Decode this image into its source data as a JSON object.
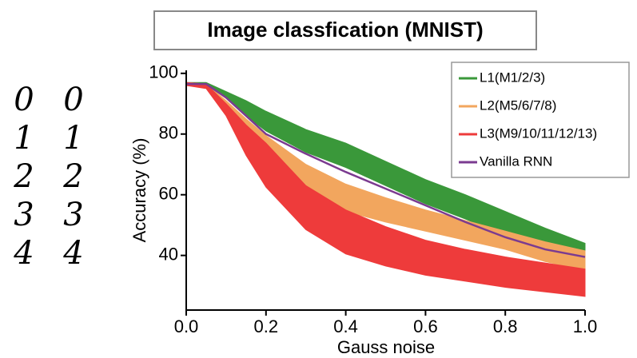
{
  "sample_digits": [
    [
      "0",
      "0"
    ],
    [
      "1",
      "1"
    ],
    [
      "2",
      "2"
    ],
    [
      "3",
      "3"
    ],
    [
      "4",
      "4"
    ]
  ],
  "chart_data": {
    "type": "line",
    "title": "Image classfication (MNIST)",
    "x_label": "Gauss noise",
    "y_label": "Accuracy (%)",
    "x": [
      0,
      0.05,
      0.1,
      0.15,
      0.2,
      0.3,
      0.4,
      0.5,
      0.6,
      0.7,
      0.8,
      0.9,
      1.0
    ],
    "series": [
      {
        "name": "L1(M1/2/3)",
        "color": "#3a983a",
        "upper": [
          97,
          97,
          94,
          91,
          87.5,
          81.5,
          77,
          71,
          65,
          60,
          54.5,
          49,
          44
        ],
        "lower": [
          96,
          96,
          92,
          86,
          81,
          74,
          69,
          63,
          57,
          52,
          46.5,
          42,
          38
        ]
      },
      {
        "name": "L2(M5/6/7/8)",
        "color": "#f2a65e",
        "upper": [
          97,
          96.5,
          91,
          85,
          79.5,
          70,
          63.5,
          59,
          55,
          51.5,
          48,
          44.5,
          41.5
        ],
        "lower": [
          96,
          95.5,
          89,
          81,
          74,
          62,
          54.5,
          51,
          48,
          45,
          42,
          38,
          35
        ]
      },
      {
        "name": "L3(M9/10/11/12/13)",
        "color": "#ee3b3b",
        "upper": [
          97,
          96.5,
          90,
          83,
          77,
          63,
          55,
          49.5,
          45,
          42,
          39.5,
          37.5,
          35.5
        ],
        "lower": [
          96,
          95,
          86,
          73,
          62.5,
          48.5,
          40.5,
          36.5,
          33.5,
          31.5,
          29.5,
          28,
          26.5
        ]
      },
      {
        "name": "Vanilla RNN",
        "color": "#7b3b90",
        "values": [
          96.5,
          96.5,
          92,
          86,
          80,
          73.5,
          67.5,
          62,
          56.5,
          51,
          46,
          42,
          39.5
        ]
      }
    ],
    "xlim": [
      0,
      1.0
    ],
    "ylim": [
      22,
      101
    ],
    "xticks": [
      {
        "value": 0,
        "label": "0.0"
      },
      0.2,
      0.4,
      0.6,
      0.8,
      {
        "value": 1.0,
        "label": "1.0"
      }
    ],
    "yticks": [
      40,
      60,
      80,
      100
    ],
    "legend": "upper right"
  }
}
